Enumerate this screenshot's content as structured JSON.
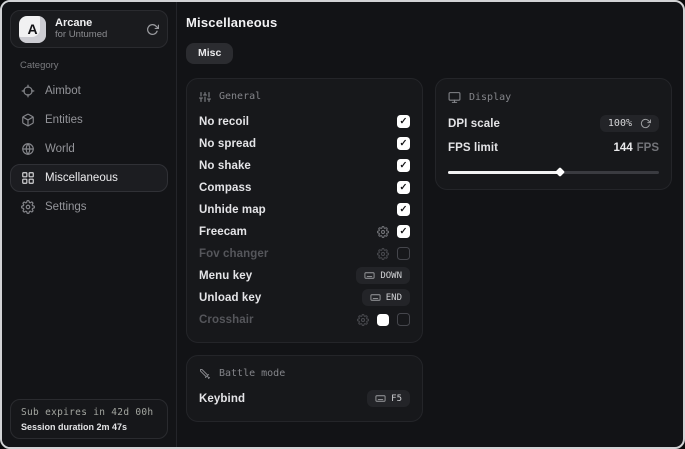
{
  "app": {
    "name": "Arcane",
    "subtitle": "for Untumed",
    "logo_letter": "A"
  },
  "sidebar": {
    "category_label": "Category",
    "items": [
      {
        "label": "Aimbot",
        "icon": "crosshair-icon",
        "active": false
      },
      {
        "label": "Entities",
        "icon": "cube-icon",
        "active": false
      },
      {
        "label": "World",
        "icon": "globe-icon",
        "active": false
      },
      {
        "label": "Miscellaneous",
        "icon": "grid-icon",
        "active": true
      },
      {
        "label": "Settings",
        "icon": "gear-icon",
        "active": false
      }
    ],
    "sub_expires": "Sub expires in 42d 00h",
    "session_duration": "Session duration 2m 47s"
  },
  "main": {
    "title": "Miscellaneous",
    "tab": "Misc"
  },
  "general": {
    "title": "General",
    "rows": [
      {
        "label": "No recoil",
        "checked": true
      },
      {
        "label": "No spread",
        "checked": true
      },
      {
        "label": "No shake",
        "checked": true
      },
      {
        "label": "Compass",
        "checked": true
      },
      {
        "label": "Unhide map",
        "checked": true
      },
      {
        "label": "Freecam",
        "checked": true,
        "has_settings": true
      },
      {
        "label": "Fov changer",
        "checked": false,
        "has_settings": true,
        "disabled": true
      },
      {
        "label": "Menu key",
        "key": "DOWN"
      },
      {
        "label": "Unload key",
        "key": "END"
      },
      {
        "label": "Crosshair",
        "checked": false,
        "has_settings": true,
        "has_swatch": true,
        "disabled": true
      }
    ]
  },
  "battle": {
    "title": "Battle mode",
    "keybind_label": "Keybind",
    "keybind_key": "F5"
  },
  "display": {
    "title": "Display",
    "dpi_label": "DPI scale",
    "dpi_value": "100%",
    "fps_label": "FPS limit",
    "fps_value": "144",
    "fps_unit": "FPS",
    "fps_slider_percent": 53
  },
  "colors": {
    "checkbox_checked": "#ffffff",
    "crosshair_swatch": "#ffffff",
    "accent_border": "#303136"
  }
}
